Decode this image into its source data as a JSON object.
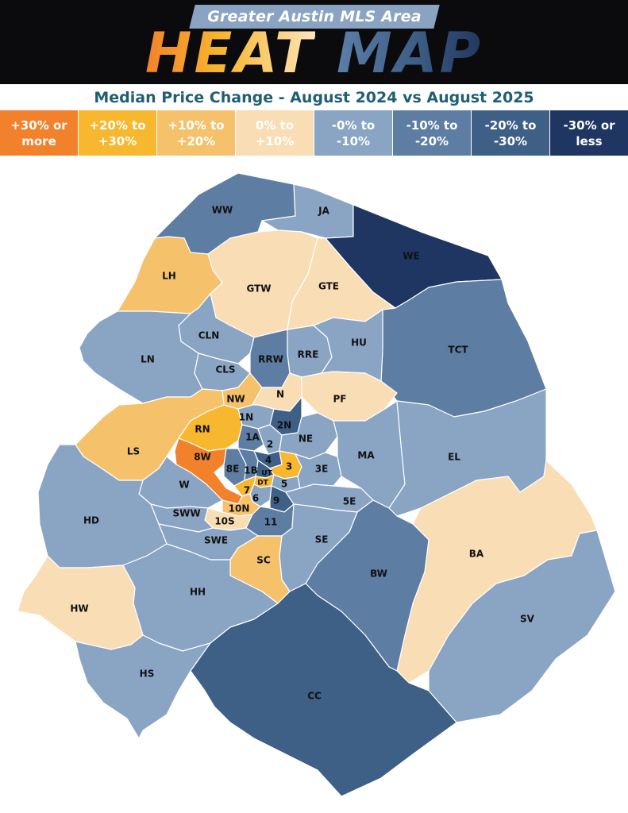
{
  "header": {
    "supertitle": "Greater Austin MLS Area",
    "title_heat": "HEAT",
    "title_map": "MAP",
    "subtitle": "Median Price Change - August 2024 vs August 2025"
  },
  "colors": {
    "p30": "#f2812b",
    "p20": "#f7b72e",
    "p10": "#f5c26b",
    "p0": "#f9ddb5",
    "n0": "#8aa4c4",
    "n10": "#5d7da3",
    "n20": "#3e5f86",
    "n30": "#1e3661",
    "background_header": "#0b0b0d",
    "subtitle_text": "#1f5e73"
  },
  "legend": [
    {
      "label": "+30% or more",
      "color": "#f2812b"
    },
    {
      "label": "+20% to +30%",
      "color": "#f7b72e"
    },
    {
      "label": "+10% to +20%",
      "color": "#f5c26b"
    },
    {
      "label": "0% to +10%",
      "color": "#f9ddb5"
    },
    {
      "label": "-0% to -10%",
      "color": "#8aa4c4"
    },
    {
      "label": "-10% to -20%",
      "color": "#5d7da3"
    },
    {
      "label": "-20% to -30%",
      "color": "#3e5f86"
    },
    {
      "label": "-30% or less",
      "color": "#1e3661"
    }
  ],
  "areas": [
    {
      "code": "WW",
      "category": "-10% to -20%"
    },
    {
      "code": "JA",
      "category": "-0% to -10%"
    },
    {
      "code": "WE",
      "category": "-30% or less"
    },
    {
      "code": "LH",
      "category": "+10% to +20%"
    },
    {
      "code": "GTW",
      "category": "0% to +10%"
    },
    {
      "code": "GTE",
      "category": "0% to +10%"
    },
    {
      "code": "TCT",
      "category": "-10% to -20%"
    },
    {
      "code": "CLN",
      "category": "-0% to -10%"
    },
    {
      "code": "RRW",
      "category": "-10% to -20%"
    },
    {
      "code": "RRE",
      "category": "-0% to -10%"
    },
    {
      "code": "HU",
      "category": "-0% to -10%"
    },
    {
      "code": "LN",
      "category": "-0% to -10%"
    },
    {
      "code": "CLS",
      "category": "-0% to -10%"
    },
    {
      "code": "NW",
      "category": "+10% to +20%"
    },
    {
      "code": "N",
      "category": "0% to +10%"
    },
    {
      "code": "PF",
      "category": "0% to +10%"
    },
    {
      "code": "1N",
      "category": "-0% to -10%"
    },
    {
      "code": "2N",
      "category": "-20% to -30%"
    },
    {
      "code": "RN",
      "category": "+20% to +30%"
    },
    {
      "code": "1A",
      "category": "-10% to -20%"
    },
    {
      "code": "2",
      "category": "-0% to -10%"
    },
    {
      "code": "NE",
      "category": "-0% to -10%"
    },
    {
      "code": "LS",
      "category": "+10% to +20%"
    },
    {
      "code": "8W",
      "category": "+30% or more"
    },
    {
      "code": "4",
      "category": "-20% to -30%"
    },
    {
      "code": "3",
      "category": "+20% to +30%"
    },
    {
      "code": "3E",
      "category": "-0% to -10%"
    },
    {
      "code": "MA",
      "category": "-0% to -10%"
    },
    {
      "code": "EL",
      "category": "-0% to -10%"
    },
    {
      "code": "8E",
      "category": "-10% to -20%"
    },
    {
      "code": "1B",
      "category": "-10% to -20%"
    },
    {
      "code": "UT",
      "category": "-20% to -30%"
    },
    {
      "code": "W",
      "category": "-0% to -10%"
    },
    {
      "code": "DT",
      "category": "+20% to +30%"
    },
    {
      "code": "5",
      "category": "-0% to -10%"
    },
    {
      "code": "7",
      "category": "+20% to +30%"
    },
    {
      "code": "6",
      "category": "-0% to -10%"
    },
    {
      "code": "9",
      "category": "-20% to -30%"
    },
    {
      "code": "5E",
      "category": "-0% to -10%"
    },
    {
      "code": "SWW",
      "category": "-0% to -10%"
    },
    {
      "code": "10N",
      "category": "+10% to +20%"
    },
    {
      "code": "HD",
      "category": "-0% to -10%"
    },
    {
      "code": "10S",
      "category": "0% to +10%"
    },
    {
      "code": "11",
      "category": "-10% to -20%"
    },
    {
      "code": "SWE",
      "category": "-0% to -10%"
    },
    {
      "code": "SE",
      "category": "-0% to -10%"
    },
    {
      "code": "BA",
      "category": "0% to +10%"
    },
    {
      "code": "SC",
      "category": "+10% to +20%"
    },
    {
      "code": "BW",
      "category": "-10% to -20%"
    },
    {
      "code": "HW",
      "category": "0% to +10%"
    },
    {
      "code": "HH",
      "category": "-0% to -10%"
    },
    {
      "code": "SV",
      "category": "-0% to -10%"
    },
    {
      "code": "HS",
      "category": "-0% to -10%"
    },
    {
      "code": "CC",
      "category": "-20% to -30%"
    }
  ]
}
